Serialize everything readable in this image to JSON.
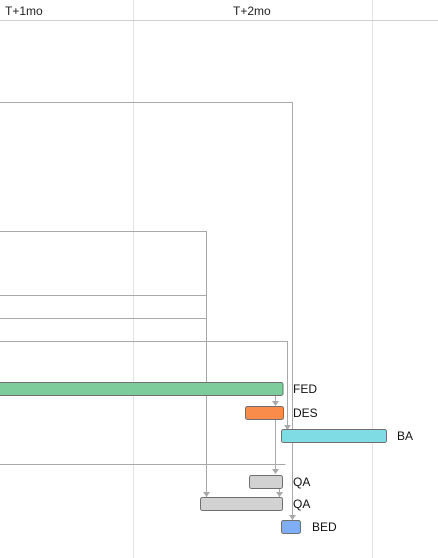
{
  "timeline": {
    "columns": [
      {
        "label": "T+1mo"
      },
      {
        "label": "T+2mo"
      }
    ]
  },
  "tasks": [
    {
      "id": "fed",
      "label": "FED",
      "color": "#7dcc9b"
    },
    {
      "id": "des",
      "label": "DES",
      "color": "#f98c4b"
    },
    {
      "id": "ba",
      "label": "BA",
      "color": "#7fdce4"
    },
    {
      "id": "qa1",
      "label": "QA",
      "color": "#d2d2d2"
    },
    {
      "id": "qa2",
      "label": "QA",
      "color": "#d2d2d2"
    },
    {
      "id": "bed",
      "label": "BED",
      "color": "#80aef4"
    }
  ],
  "colors": {
    "grid": "#e3e3e3",
    "connector": "#a8a8a8",
    "bar_border": "#6f6f6f",
    "header_line": "#cfcfcf"
  }
}
